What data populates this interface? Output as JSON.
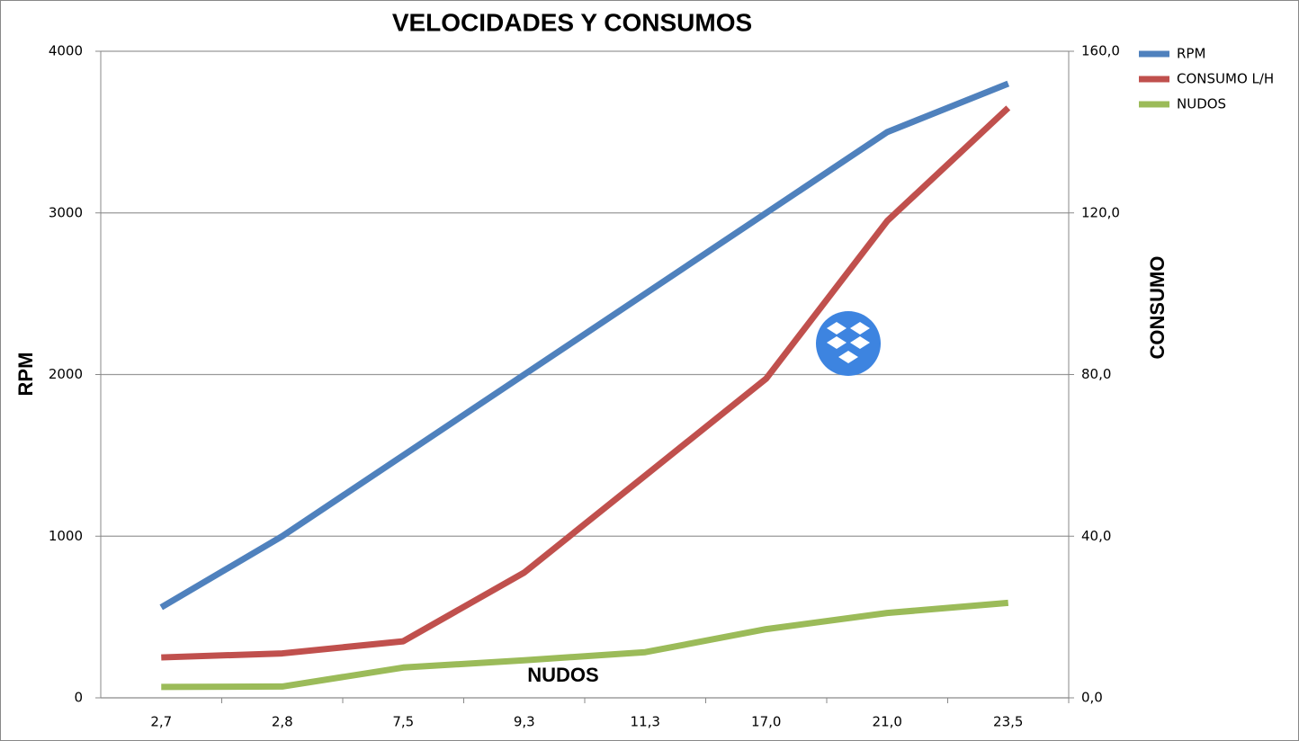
{
  "chart_data": {
    "type": "line",
    "title": "VELOCIDADES Y CONSUMOS",
    "y_label": "RPM",
    "y2_label": "CONSUMO",
    "annotation": "NUDOS",
    "categories": [
      "2,7",
      "2,8",
      "7,5",
      "9,3",
      "11,3",
      "17,0",
      "21,0",
      "23,5"
    ],
    "series": [
      {
        "name": "RPM",
        "color": "#4f81bd",
        "values": [
          560,
          1000,
          1500,
          2000,
          2500,
          3000,
          3500,
          3800
        ]
      },
      {
        "name": "CONSUMO L/H",
        "color": "#c0504d",
        "axis": "y2",
        "values": [
          10,
          11,
          14,
          31,
          55,
          79,
          118,
          146
        ]
      },
      {
        "name": "NUDOS",
        "color": "#9bbb59",
        "axis": "y2",
        "values": [
          2.7,
          2.8,
          7.5,
          9.3,
          11.3,
          17,
          21,
          23.5
        ]
      }
    ],
    "ylim": [
      0,
      4000
    ],
    "yticks": [
      0,
      1000,
      2000,
      3000,
      4000
    ],
    "y2lim": [
      0,
      160
    ],
    "y2ticks": [
      {
        "value": 0,
        "label": "0,0"
      },
      {
        "value": 40,
        "label": "40,0"
      },
      {
        "value": 80,
        "label": "80,0"
      },
      {
        "value": 120,
        "label": "120,0"
      },
      {
        "value": 160,
        "label": "160,0"
      }
    ],
    "grid": true,
    "legend": "top-right"
  }
}
